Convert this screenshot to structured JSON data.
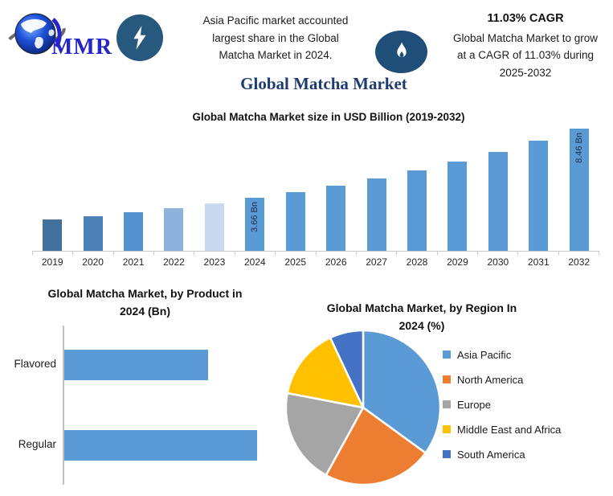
{
  "header": {
    "logo": {
      "brand": "MMR"
    },
    "highlight_left": {
      "lines": [
        "Asia Pacific market accounted",
        "largest share in the Global",
        "Matcha Market in 2024."
      ]
    },
    "highlight_right": {
      "cagr_title": "11.03% CAGR",
      "lines": [
        "Global Matcha Market to grow",
        "at a CAGR of 11.03% during",
        "2025-2032"
      ]
    },
    "title": "Global Matcha Market"
  },
  "icons": [
    "globe-icon",
    "lightning-icon",
    "flame-icon"
  ],
  "colors": {
    "badge_lightning_bg": "#27597e",
    "badge_flame_bg": "#1f4e79",
    "main_title": "#1f3a70",
    "bar_default": "#5b9bd5",
    "axis_gray": "#c8c8c8",
    "logo_text_blue": "#2525c8"
  },
  "chart_data": [
    {
      "type": "bar",
      "title": "Global Matcha Market size in USD Billion (2019-2032)",
      "unit": "USD Billion",
      "categories": [
        "2019",
        "2020",
        "2021",
        "2022",
        "2023",
        "2024",
        "2025",
        "2026",
        "2027",
        "2028",
        "2029",
        "2030",
        "2031",
        "2032"
      ],
      "values": [
        2.17,
        2.41,
        2.68,
        2.97,
        3.3,
        3.66,
        4.06,
        4.51,
        5.01,
        5.56,
        6.17,
        6.86,
        7.61,
        8.46
      ],
      "labels_on_bars": [
        {
          "category": "2024",
          "text": "3.66 Bn"
        },
        {
          "category": "2032",
          "text": "8.46 Bn"
        }
      ],
      "bar_colors": [
        "#41719c",
        "#4a80b8",
        "#5490cb",
        "#8fb2dd",
        "#c9daf0",
        "#5b9bd5",
        "#5b9bd5",
        "#5b9bd5",
        "#5b9bd5",
        "#5b9bd5",
        "#5b9bd5",
        "#5b9bd5",
        "#5b9bd5",
        "#5b9bd5"
      ],
      "ylim": [
        0,
        8.46
      ],
      "grid": false,
      "legend": false
    },
    {
      "type": "bar",
      "orientation": "horizontal",
      "title": "Global Matcha Market, by Product  in 2024 (Bn)",
      "title_lines": [
        "Global Matcha Market, by Product  in",
        "2024 (Bn)"
      ],
      "categories": [
        "Flavored",
        "Regular"
      ],
      "values": [
        1.56,
        2.09
      ],
      "xlim": [
        0,
        2.3
      ],
      "bar_color": "#5b9bd5",
      "grid": false,
      "legend": false
    },
    {
      "type": "pie",
      "title": "Global Matcha Market, by Region In 2024 (%)",
      "title_lines": [
        "Global Matcha Market, by Region In",
        "2024 (%)"
      ],
      "labels": [
        "Asia Pacific",
        "North America",
        "Europe",
        "Middle East and Africa",
        "South America"
      ],
      "values": [
        35,
        23,
        20,
        15,
        7
      ],
      "colors": [
        "#5b9bd5",
        "#ed7d31",
        "#a5a5a5",
        "#ffc000",
        "#4472c4"
      ],
      "start_angle_deg": 0,
      "direction": "clockwise",
      "legend_position": "right"
    }
  ]
}
